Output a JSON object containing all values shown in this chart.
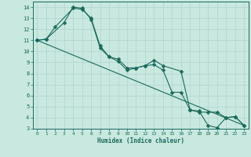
{
  "title": "",
  "xlabel": "Humidex (Indice chaleur)",
  "ylabel": "",
  "bg_color": "#c8e8e0",
  "grid_color": "#b0d4cc",
  "line_color": "#1a6b5a",
  "xlim": [
    -0.5,
    23.5
  ],
  "ylim": [
    3,
    14.5
  ],
  "xticks": [
    0,
    1,
    2,
    3,
    4,
    5,
    6,
    7,
    8,
    9,
    10,
    11,
    12,
    13,
    14,
    15,
    16,
    17,
    18,
    19,
    20,
    21,
    22,
    23
  ],
  "yticks": [
    3,
    4,
    5,
    6,
    7,
    8,
    9,
    10,
    11,
    12,
    13,
    14
  ],
  "line1_x": [
    0,
    1,
    2,
    4,
    5,
    6,
    7,
    8,
    9,
    10,
    11,
    12,
    13,
    14,
    16,
    17,
    18,
    19,
    20,
    21,
    22,
    23
  ],
  "line1_y": [
    11.0,
    11.1,
    12.2,
    13.9,
    13.8,
    13.0,
    10.5,
    9.5,
    9.3,
    8.5,
    8.5,
    8.7,
    9.2,
    8.7,
    8.2,
    4.7,
    4.6,
    3.3,
    3.1,
    4.0,
    4.1,
    3.3
  ],
  "line2_x": [
    0,
    1,
    3,
    4,
    5,
    6,
    7,
    8,
    9,
    10,
    11,
    12,
    13,
    14,
    15,
    16,
    17,
    18,
    19,
    20,
    21,
    22,
    23
  ],
  "line2_y": [
    11.0,
    11.1,
    12.6,
    14.0,
    13.9,
    12.9,
    10.3,
    9.5,
    9.1,
    8.3,
    8.5,
    8.7,
    8.8,
    8.3,
    6.3,
    6.3,
    4.7,
    4.5,
    4.5,
    4.5,
    4.0,
    4.1,
    3.3
  ],
  "line3_x": [
    0,
    23
  ],
  "line3_y": [
    11.0,
    3.3
  ],
  "marker_size": 2.5,
  "linewidth": 0.8
}
